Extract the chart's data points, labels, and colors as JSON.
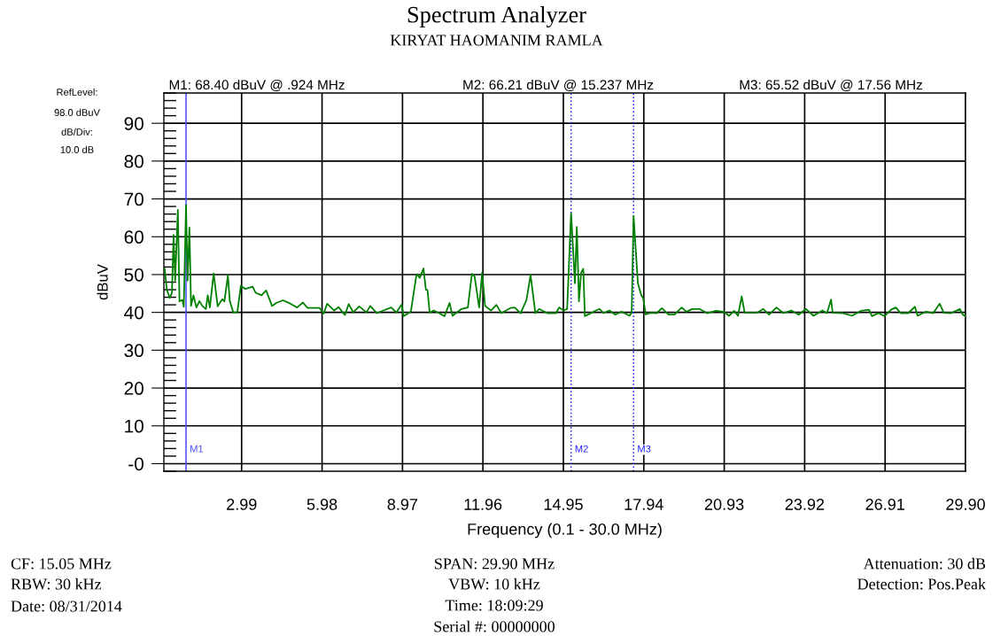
{
  "chart_data": {
    "type": "line",
    "title": "Spectrum Analyzer",
    "subtitle": "KIRYAT HAOMANIM RAMLA",
    "xlabel": "Frequency (0.1 - 30.0 MHz)",
    "ylabel": "dBuV",
    "xlim": [
      0.1,
      29.9
    ],
    "ylim": [
      -2,
      98
    ],
    "xticks": [
      2.99,
      5.98,
      8.97,
      11.96,
      14.95,
      17.94,
      20.93,
      23.92,
      26.91,
      {
        "value": 29.9,
        "label": "29.90"
      }
    ],
    "yticks": [
      {
        "value": 0,
        "label": "-0"
      },
      10,
      20,
      30,
      40,
      50,
      60,
      70,
      80,
      90
    ],
    "grid": true,
    "legend": false,
    "marker": "none",
    "line_style": "solid",
    "series": [
      {
        "color": "#008000",
        "x": [
          0.13,
          0.21,
          0.32,
          0.4,
          0.46,
          0.52,
          0.62,
          0.68,
          0.79,
          0.84,
          0.924,
          0.98,
          1.05,
          1.11,
          1.2,
          1.31,
          1.42,
          1.53,
          1.66,
          1.73,
          1.81,
          1.95,
          2.1,
          2.27,
          2.35,
          2.48,
          2.55,
          2.68,
          2.83,
          2.96,
          3.13,
          3.4,
          3.51,
          3.73,
          3.9,
          4.12,
          4.28,
          4.53,
          4.78,
          5.05,
          5.27,
          5.44,
          5.88,
          6.04,
          6.17,
          6.43,
          6.59,
          6.83,
          6.97,
          7.14,
          7.36,
          7.63,
          7.77,
          8.02,
          8.26,
          8.55,
          8.74,
          8.94,
          9.01,
          9.28,
          9.48,
          9.52,
          9.61,
          9.75,
          9.84,
          9.9,
          9.98,
          10.13,
          10.33,
          10.53,
          10.72,
          10.83,
          11.16,
          11.4,
          11.55,
          11.65,
          11.82,
          11.93,
          12.04,
          12.26,
          12.46,
          12.64,
          13.0,
          13.14,
          13.36,
          13.58,
          13.73,
          13.91,
          14.05,
          14.35,
          14.68,
          14.79,
          14.95,
          15.09,
          15.237,
          15.38,
          15.45,
          15.53,
          15.61,
          15.69,
          15.75,
          16.0,
          16.16,
          16.3,
          16.44,
          16.66,
          16.88,
          17.11,
          17.41,
          17.49,
          17.56,
          17.72,
          17.85,
          17.92,
          18.01,
          18.2,
          18.42,
          18.61,
          18.86,
          19.08,
          19.35,
          19.52,
          19.74,
          20.01,
          20.29,
          20.62,
          20.89,
          21.11,
          21.3,
          21.44,
          21.58,
          21.69,
          22.16,
          22.38,
          22.6,
          22.87,
          23.13,
          23.42,
          23.7,
          23.97,
          24.25,
          24.58,
          24.75,
          24.9,
          24.96,
          25.35,
          25.68,
          26.01,
          26.31,
          26.42,
          26.67,
          26.89,
          27.13,
          27.31,
          27.49,
          27.77,
          28.02,
          28.12,
          28.43,
          28.7,
          28.94,
          29.09,
          29.36,
          29.69,
          29.8,
          29.89
        ],
        "values": [
          51.5,
          46.0,
          43.8,
          45.2,
          60.5,
          48.4,
          67.1,
          42.9,
          43.3,
          41.5,
          68.4,
          48.4,
          62.4,
          41.7,
          44.5,
          41.3,
          43.0,
          41.7,
          40.9,
          44.5,
          41.3,
          50.3,
          41.6,
          43.5,
          42.9,
          49.8,
          43.0,
          40.0,
          40.0,
          47.0,
          46.2,
          46.8,
          45.2,
          44.5,
          45.8,
          41.7,
          42.5,
          43.2,
          42.4,
          41.3,
          42.6,
          41.2,
          41.2,
          39.7,
          42.3,
          40.5,
          41.4,
          39.3,
          42.2,
          40.0,
          41.6,
          40.0,
          41.7,
          39.8,
          40.5,
          41.3,
          40.0,
          42.1,
          39.0,
          40.2,
          49.5,
          50.1,
          49.1,
          51.6,
          46.0,
          45.9,
          39.9,
          40.5,
          39.8,
          39.0,
          42.5,
          39.1,
          40.9,
          41.3,
          50.2,
          49.5,
          41.3,
          50.5,
          41.7,
          40.5,
          42.0,
          39.8,
          41.2,
          41.3,
          39.8,
          43.3,
          49.9,
          39.8,
          40.9,
          39.8,
          39.8,
          41.3,
          40.5,
          40.9,
          66.2,
          47.7,
          62.6,
          42.9,
          50.5,
          51.5,
          39.0,
          39.9,
          40.5,
          40.9,
          39.8,
          40.5,
          39.4,
          40.2,
          39.1,
          39.9,
          65.5,
          47.7,
          44.5,
          43.7,
          39.5,
          39.9,
          39.8,
          41.1,
          39.4,
          39.4,
          41.3,
          40.2,
          40.9,
          40.9,
          39.8,
          40.4,
          40.2,
          39.1,
          40.4,
          39.1,
          44.2,
          39.9,
          39.9,
          40.9,
          39.4,
          41.3,
          39.8,
          40.5,
          39.4,
          40.9,
          39.1,
          40.5,
          39.8,
          43.4,
          39.9,
          39.8,
          39.1,
          40.4,
          40.7,
          39.0,
          39.8,
          39.0,
          40.7,
          41.3,
          39.8,
          39.8,
          41.5,
          39.1,
          40.2,
          39.8,
          42.3,
          39.9,
          39.8,
          40.9,
          39.4,
          39.0
        ]
      }
    ],
    "ref_lines": [
      {
        "axis": "x",
        "value": 0.924,
        "label": "M1",
        "color": "#4a4aff",
        "line_style": "solid"
      },
      {
        "axis": "x",
        "value": 15.237,
        "label": "M2",
        "color": "#2020ff",
        "line_style": "dotted"
      },
      {
        "axis": "x",
        "value": 17.56,
        "label": "M3",
        "color": "#2020ff",
        "line_style": "dotted"
      }
    ],
    "annotations": [
      "M1: 68.40 dBuV @ .924 MHz",
      "M2: 66.21 dBuV @ 15.237 MHz",
      "M3: 65.52 dBuV @ 17.56 MHz",
      "RefLevel:",
      "98.0 dBuV",
      "dB/Div:",
      "10.0 dB",
      "CF: 15.05 MHz",
      "RBW: 30 kHz",
      "Date: 08/31/2014",
      "SPAN: 29.90 MHz",
      "VBW: 10 kHz",
      "Time: 18:09:29",
      "Serial #: 00000000",
      "Attenuation: 30 dB",
      "Detection: Pos.Peak"
    ]
  }
}
